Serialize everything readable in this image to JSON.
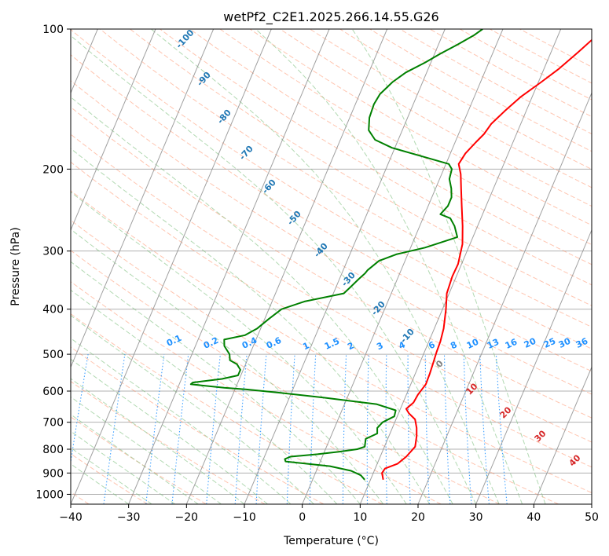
{
  "chart_data": {
    "type": "line",
    "title": "wetPf2_C2E1.2025.266.14.55.G26",
    "xlabel": "Temperature (°C)",
    "ylabel": "Pressure (hPa)",
    "xlim": [
      -40,
      50
    ],
    "ylim": [
      1050,
      100
    ],
    "y_scale": "log",
    "grid": true,
    "x_ticks": [
      -40,
      -30,
      -20,
      -10,
      0,
      10,
      20,
      30,
      40,
      50
    ],
    "y_ticks": [
      100,
      200,
      300,
      400,
      500,
      600,
      700,
      800,
      900,
      1000
    ],
    "x_tick_labels": [
      "−40",
      "−30",
      "−20",
      "−10",
      "0",
      "10",
      "20",
      "30",
      "40",
      "50"
    ],
    "y_tick_labels": [
      "100",
      "200",
      "300",
      "400",
      "500",
      "600",
      "700",
      "800",
      "900",
      "1000"
    ],
    "colors": {
      "temperature": "#ff0000",
      "dewpoint": "#008000",
      "dry_adiabat": "#ff7f50",
      "moist_adiabat": "#7fbf7f",
      "mixing_ratio": "#1e90ff",
      "isotherm": "#808080",
      "dry_label": "#1f77b4",
      "moist_label": "#d62728"
    },
    "series": [
      {
        "key": "temperature",
        "points": [
          [
            12.2,
            930
          ],
          [
            11.5,
            900
          ],
          [
            11.7,
            880
          ],
          [
            13.5,
            860
          ],
          [
            14.5,
            830
          ],
          [
            15.3,
            790
          ],
          [
            14.8,
            750
          ],
          [
            14.2,
            720
          ],
          [
            13.3,
            690
          ],
          [
            11.8,
            670
          ],
          [
            11.0,
            655
          ],
          [
            11.8,
            635
          ],
          [
            12.0,
            610
          ],
          [
            12.6,
            580
          ],
          [
            12.5,
            550
          ],
          [
            12.3,
            520
          ],
          [
            12.1,
            495
          ],
          [
            12.0,
            470
          ],
          [
            11.6,
            440
          ],
          [
            10.6,
            400
          ],
          [
            9.6,
            370
          ],
          [
            9.3,
            340
          ],
          [
            9.4,
            320
          ],
          [
            8.7,
            290
          ],
          [
            7.4,
            265
          ],
          [
            5.8,
            240
          ],
          [
            4.4,
            220
          ],
          [
            3.3,
            205
          ],
          [
            2.2,
            195
          ],
          [
            2.6,
            185
          ],
          [
            3.6,
            175
          ],
          [
            4.4,
            168
          ],
          [
            4.9,
            160
          ],
          [
            6.3,
            150
          ],
          [
            8.0,
            140
          ],
          [
            10.5,
            130
          ],
          [
            12.5,
            122
          ],
          [
            14.7,
            112
          ],
          [
            16.5,
            104
          ],
          [
            17.6,
            100
          ]
        ]
      },
      {
        "key": "dewpoint",
        "points": [
          [
            9.0,
            930
          ],
          [
            8.0,
            910
          ],
          [
            6.0,
            890
          ],
          [
            2.0,
            870
          ],
          [
            -2.0,
            860
          ],
          [
            -6.0,
            850
          ],
          [
            -6.3,
            840
          ],
          [
            -5.5,
            830
          ],
          [
            -1.0,
            820
          ],
          [
            2.5,
            810
          ],
          [
            5.5,
            800
          ],
          [
            6.6,
            790
          ],
          [
            6.2,
            760
          ],
          [
            7.8,
            740
          ],
          [
            7.4,
            720
          ],
          [
            7.9,
            700
          ],
          [
            9.5,
            680
          ],
          [
            9.3,
            660
          ],
          [
            5.5,
            640
          ],
          [
            -4.0,
            620
          ],
          [
            -12.0,
            605
          ],
          [
            -18.0,
            595
          ],
          [
            -22.0,
            590
          ],
          [
            -28.0,
            580
          ],
          [
            -27.8,
            575
          ],
          [
            -23.0,
            565
          ],
          [
            -20.5,
            555
          ],
          [
            -20.5,
            540
          ],
          [
            -21.5,
            525
          ],
          [
            -23.0,
            515
          ],
          [
            -23.5,
            500
          ],
          [
            -25.0,
            480
          ],
          [
            -25.5,
            465
          ],
          [
            -22.2,
            455
          ],
          [
            -20.6,
            440
          ],
          [
            -19.3,
            420
          ],
          [
            -17.8,
            400
          ],
          [
            -14.4,
            385
          ],
          [
            -8.2,
            370
          ],
          [
            -7.6,
            360
          ],
          [
            -6.7,
            345
          ],
          [
            -6.0,
            335
          ],
          [
            -5.8,
            330
          ],
          [
            -4.5,
            315
          ],
          [
            -2.0,
            305
          ],
          [
            2.5,
            295
          ],
          [
            7.3,
            280
          ],
          [
            6.0,
            265
          ],
          [
            4.7,
            255
          ],
          [
            2.7,
            250
          ],
          [
            3.4,
            240
          ],
          [
            3.4,
            230
          ],
          [
            2.7,
            220
          ],
          [
            1.7,
            210
          ],
          [
            1.4,
            200
          ],
          [
            0.5,
            195
          ],
          [
            -4.5,
            188
          ],
          [
            -10.5,
            180
          ],
          [
            -14.0,
            173
          ],
          [
            -15.8,
            165
          ],
          [
            -16.6,
            155
          ],
          [
            -16.8,
            145
          ],
          [
            -16.5,
            138
          ],
          [
            -15.2,
            130
          ],
          [
            -13.6,
            124
          ],
          [
            -11.0,
            118
          ],
          [
            -9.0,
            113
          ],
          [
            -6.7,
            108
          ],
          [
            -4.5,
            103
          ],
          [
            -3.5,
            100
          ]
        ]
      }
    ],
    "dry_adiabat_labels": [
      "-100",
      "-90",
      "-80",
      "-70",
      "-60",
      "-50",
      "-40",
      "-30",
      "-20",
      "-10"
    ],
    "moist_adiabat_labels": [
      "0",
      "10",
      "20",
      "30",
      "40"
    ],
    "mixing_ratio_labels": [
      "0.1",
      "0.2",
      "0.4",
      "0.6",
      "1",
      "1.5",
      "2",
      "3",
      "4",
      "6",
      "8",
      "10",
      "13",
      "16",
      "20",
      "25",
      "30",
      "36"
    ]
  }
}
